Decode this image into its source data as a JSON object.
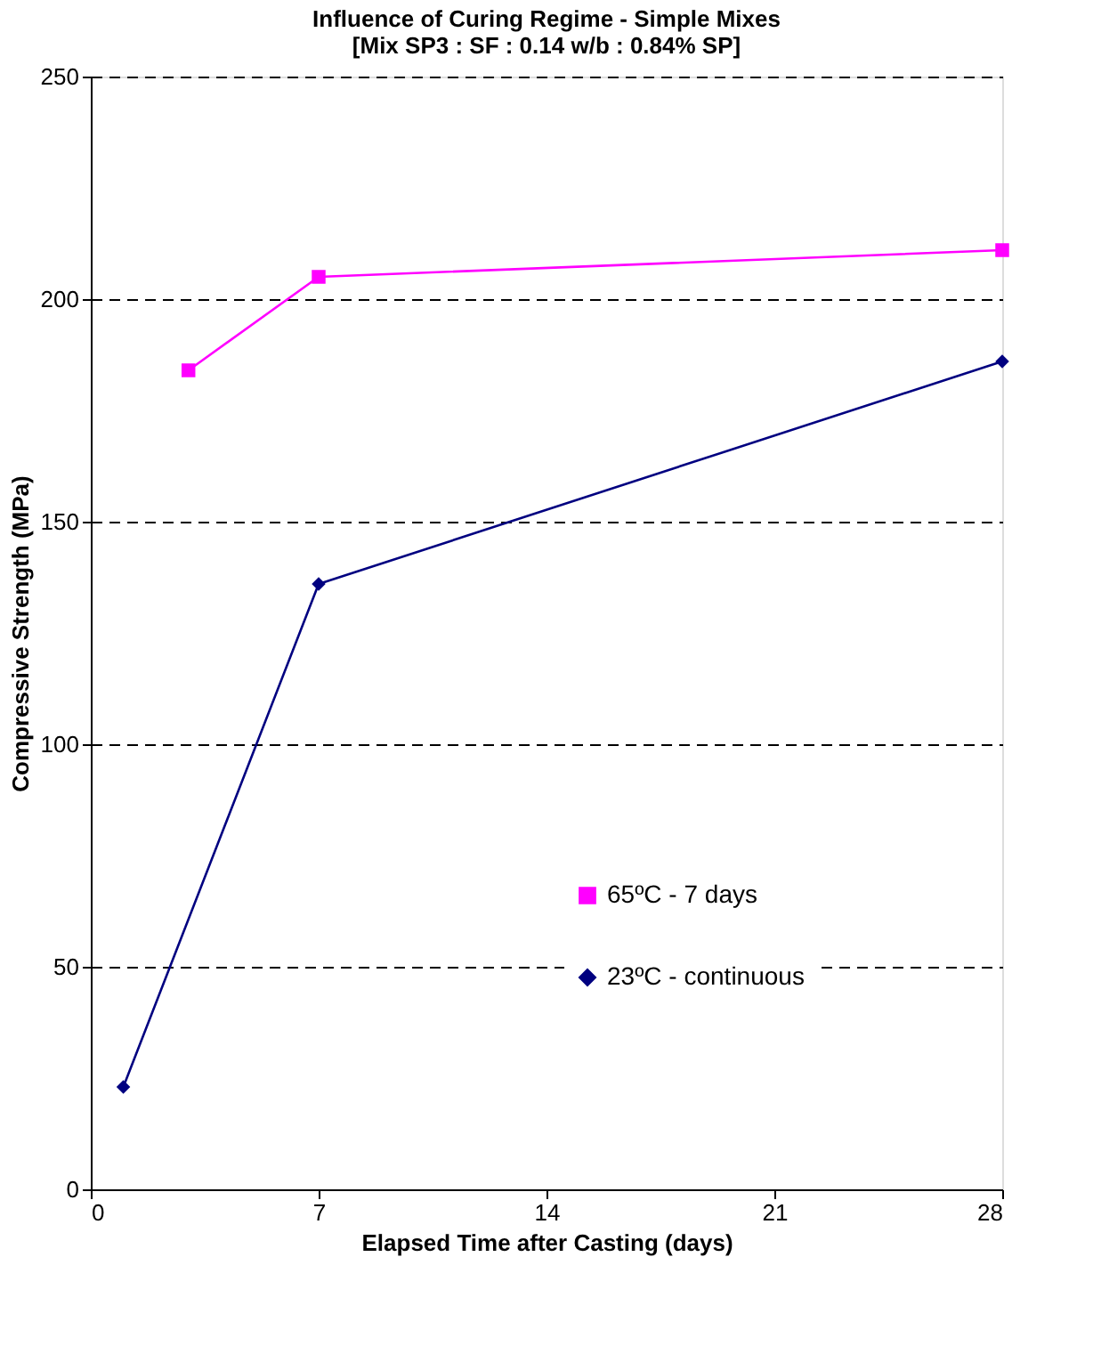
{
  "chart_data": {
    "type": "line",
    "title": "Influence of Curing Regime - Simple Mixes",
    "subtitle": "[Mix SP3 : SF : 0.14 w/b : 0.84% SP]",
    "xlabel": "Elapsed Time after Casting (days)",
    "ylabel": "Compressive Strength (MPa)",
    "xlim": [
      0,
      28
    ],
    "xticks": [
      0,
      7,
      14,
      21,
      28
    ],
    "ylim": [
      0,
      250
    ],
    "yticks": [
      0,
      50,
      100,
      150,
      200,
      250
    ],
    "grid": "y",
    "legend": "bottom right",
    "line_style": "solid",
    "series": [
      {
        "name": "65ºC - 7 days",
        "color": "#ff00ff",
        "marker": "square",
        "x": [
          3,
          7,
          28
        ],
        "values": [
          184,
          205,
          211
        ]
      },
      {
        "name": "23ºC - continuous",
        "color": "#000080",
        "marker": "diamond",
        "x": [
          1,
          7,
          28
        ],
        "values": [
          23,
          136,
          186
        ]
      }
    ]
  }
}
